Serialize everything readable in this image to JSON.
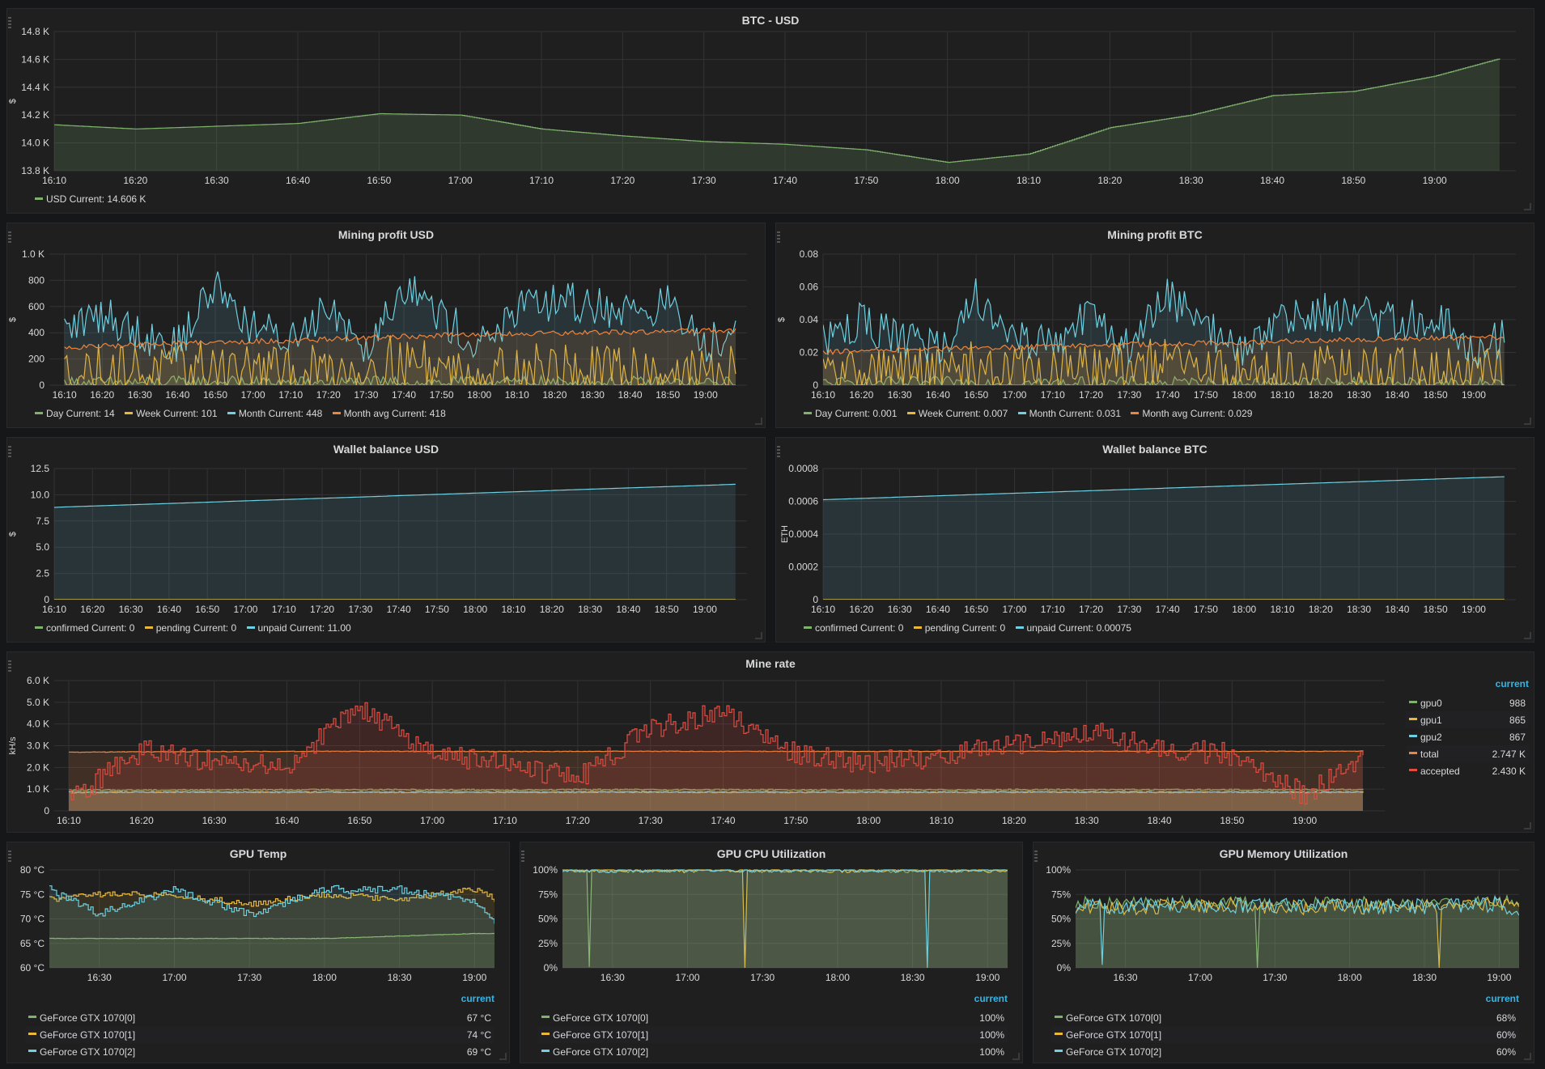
{
  "colors": {
    "green": "#7eb26d",
    "yellow": "#eab839",
    "cyan": "#6ed0e0",
    "orange": "#ef843c",
    "red": "#e24d42"
  },
  "icons": {
    "panel_grip": "drag-grip-icon",
    "panel_resize": "resize-corner-icon"
  },
  "time_ticks": {
    "full": [
      "16:10",
      "16:20",
      "16:30",
      "16:40",
      "16:50",
      "17:00",
      "17:10",
      "17:20",
      "17:30",
      "17:40",
      "17:50",
      "18:00",
      "18:10",
      "18:20",
      "18:30",
      "18:40",
      "18:50",
      "19:00"
    ],
    "half_hour": [
      "16:30",
      "17:00",
      "17:30",
      "18:00",
      "18:30",
      "19:00"
    ]
  },
  "panels": {
    "btc_usd": {
      "title": "BTC - USD",
      "ylabel": "$",
      "yticks": [
        "14.8 K",
        "14.6 K",
        "14.4 K",
        "14.2 K",
        "14.0 K",
        "13.8 K"
      ],
      "legend": [
        {
          "name": "USD",
          "current": "14.606 K",
          "color": "#7eb26d"
        }
      ]
    },
    "mining_profit_usd": {
      "title": "Mining profit USD",
      "ylabel": "$",
      "yticks": [
        "1.0 K",
        "800",
        "600",
        "400",
        "200",
        "0"
      ],
      "legend": [
        {
          "name": "Day",
          "current": "14",
          "color": "#7eb26d"
        },
        {
          "name": "Week",
          "current": "101",
          "color": "#eab839"
        },
        {
          "name": "Month",
          "current": "448",
          "color": "#6ed0e0"
        },
        {
          "name": "Month avg",
          "current": "418",
          "color": "#ef843c"
        }
      ]
    },
    "mining_profit_btc": {
      "title": "Mining profit BTC",
      "ylabel": "$",
      "yticks": [
        "0.08",
        "0.06",
        "0.04",
        "0.02",
        "0"
      ],
      "legend": [
        {
          "name": "Day",
          "current": "0.001",
          "color": "#7eb26d"
        },
        {
          "name": "Week",
          "current": "0.007",
          "color": "#eab839"
        },
        {
          "name": "Month",
          "current": "0.031",
          "color": "#6ed0e0"
        },
        {
          "name": "Month avg",
          "current": "0.029",
          "color": "#ef843c"
        }
      ]
    },
    "wallet_usd": {
      "title": "Wallet balance USD",
      "ylabel": "$",
      "yticks": [
        "12.5",
        "10.0",
        "7.5",
        "5.0",
        "2.5",
        "0"
      ],
      "legend": [
        {
          "name": "confirmed",
          "current": "0",
          "color": "#7eb26d"
        },
        {
          "name": "pending",
          "current": "0",
          "color": "#eab839"
        },
        {
          "name": "unpaid",
          "current": "11.00",
          "color": "#6ed0e0"
        }
      ]
    },
    "wallet_btc": {
      "title": "Wallet balance BTC",
      "ylabel": "ETH",
      "yticks": [
        "0.0008",
        "0.0006",
        "0.0004",
        "0.0002",
        "0"
      ],
      "legend": [
        {
          "name": "confirmed",
          "current": "0",
          "color": "#7eb26d"
        },
        {
          "name": "pending",
          "current": "0",
          "color": "#eab839"
        },
        {
          "name": "unpaid",
          "current": "0.00075",
          "color": "#6ed0e0"
        }
      ]
    },
    "mine_rate": {
      "title": "Mine rate",
      "ylabel": "kH/s",
      "yticks": [
        "6.0 K",
        "5.0 K",
        "4.0 K",
        "3.0 K",
        "2.0 K",
        "1.0 K",
        "0"
      ],
      "legend_header": "current",
      "legend": [
        {
          "name": "gpu0",
          "current": "988",
          "color": "#7eb26d"
        },
        {
          "name": "gpu1",
          "current": "865",
          "color": "#eab839"
        },
        {
          "name": "gpu2",
          "current": "867",
          "color": "#6ed0e0"
        },
        {
          "name": "total",
          "current": "2.747 K",
          "color": "#ef843c"
        },
        {
          "name": "accepted",
          "current": "2.430 K",
          "color": "#e24d42"
        }
      ]
    },
    "gpu_temp": {
      "title": "GPU Temp",
      "yticks": [
        "80 °C",
        "75 °C",
        "70 °C",
        "65 °C",
        "60 °C"
      ],
      "legend_header": "current",
      "legend": [
        {
          "name": "GeForce GTX 1070[0]",
          "current": "67 °C",
          "color": "#7eb26d"
        },
        {
          "name": "GeForce GTX 1070[1]",
          "current": "74 °C",
          "color": "#eab839"
        },
        {
          "name": "GeForce GTX 1070[2]",
          "current": "69 °C",
          "color": "#6ed0e0"
        }
      ]
    },
    "gpu_cpu": {
      "title": "GPU CPU Utilization",
      "yticks": [
        "100%",
        "75%",
        "50%",
        "25%",
        "0%"
      ],
      "legend_header": "current",
      "legend": [
        {
          "name": "GeForce GTX 1070[0]",
          "current": "100%",
          "color": "#7eb26d"
        },
        {
          "name": "GeForce GTX 1070[1]",
          "current": "100%",
          "color": "#eab839"
        },
        {
          "name": "GeForce GTX 1070[2]",
          "current": "100%",
          "color": "#6ed0e0"
        }
      ]
    },
    "gpu_mem": {
      "title": "GPU Memory Utilization",
      "yticks": [
        "100%",
        "75%",
        "50%",
        "25%",
        "0%"
      ],
      "legend_header": "current",
      "legend": [
        {
          "name": "GeForce GTX 1070[0]",
          "current": "68%",
          "color": "#7eb26d"
        },
        {
          "name": "GeForce GTX 1070[1]",
          "current": "60%",
          "color": "#eab839"
        },
        {
          "name": "GeForce GTX 1070[2]",
          "current": "60%",
          "color": "#6ed0e0"
        }
      ]
    }
  },
  "chart_data": [
    {
      "id": "btc_usd",
      "type": "line",
      "title": "BTC - USD",
      "ylabel": "$",
      "ylim": [
        13800,
        14800
      ],
      "x": [
        "16:10",
        "16:20",
        "16:30",
        "16:40",
        "16:50",
        "17:00",
        "17:10",
        "17:20",
        "17:30",
        "17:40",
        "17:50",
        "18:00",
        "18:10",
        "18:20",
        "18:30",
        "18:40",
        "18:50",
        "19:00",
        "19:08"
      ],
      "series": [
        {
          "name": "USD",
          "values": [
            14130,
            14100,
            14120,
            14140,
            14210,
            14200,
            14100,
            14050,
            14010,
            13990,
            13950,
            13860,
            13920,
            14110,
            14200,
            14340,
            14370,
            14480,
            14606
          ]
        }
      ]
    },
    {
      "id": "mining_profit_usd",
      "type": "line",
      "title": "Mining profit USD",
      "ylabel": "$",
      "ylim": [
        0,
        1000
      ],
      "x": [
        "16:10",
        "16:20",
        "16:30",
        "16:40",
        "16:50",
        "17:00",
        "17:10",
        "17:20",
        "17:30",
        "17:40",
        "17:50",
        "18:00",
        "18:10",
        "18:20",
        "18:30",
        "18:40",
        "18:50",
        "19:00",
        "19:08"
      ],
      "series": [
        {
          "name": "Day",
          "values": [
            15,
            18,
            20,
            22,
            25,
            20,
            18,
            20,
            22,
            20,
            18,
            20,
            22,
            20,
            18,
            20,
            18,
            16,
            14
          ]
        },
        {
          "name": "Week",
          "values": [
            90,
            110,
            120,
            100,
            150,
            110,
            80,
            120,
            140,
            190,
            120,
            100,
            110,
            120,
            90,
            130,
            100,
            80,
            101
          ]
        },
        {
          "name": "Month",
          "values": [
            420,
            550,
            400,
            300,
            780,
            430,
            350,
            620,
            300,
            780,
            520,
            300,
            560,
            640,
            610,
            560,
            620,
            300,
            448
          ]
        },
        {
          "name": "Month avg",
          "values": [
            280,
            300,
            310,
            320,
            330,
            335,
            340,
            350,
            360,
            370,
            380,
            385,
            390,
            395,
            400,
            405,
            410,
            415,
            418
          ]
        }
      ]
    },
    {
      "id": "mining_profit_btc",
      "type": "line",
      "title": "Mining profit BTC",
      "ylabel": "$",
      "ylim": [
        0,
        0.08
      ],
      "x": [
        "16:10",
        "16:20",
        "16:30",
        "16:40",
        "16:50",
        "17:00",
        "17:10",
        "17:20",
        "17:30",
        "17:40",
        "17:50",
        "18:00",
        "18:10",
        "18:20",
        "18:30",
        "18:40",
        "18:50",
        "19:00",
        "19:08"
      ],
      "series": [
        {
          "name": "Day",
          "values": [
            0.001,
            0.0012,
            0.0013,
            0.0014,
            0.0015,
            0.0013,
            0.0012,
            0.0013,
            0.0014,
            0.0013,
            0.0012,
            0.0013,
            0.0014,
            0.0013,
            0.0012,
            0.0013,
            0.0012,
            0.0011,
            0.001
          ]
        },
        {
          "name": "Week",
          "values": [
            0.006,
            0.008,
            0.009,
            0.007,
            0.011,
            0.008,
            0.006,
            0.009,
            0.01,
            0.013,
            0.009,
            0.007,
            0.008,
            0.009,
            0.007,
            0.009,
            0.007,
            0.006,
            0.007
          ]
        },
        {
          "name": "Month",
          "values": [
            0.029,
            0.038,
            0.028,
            0.022,
            0.055,
            0.03,
            0.025,
            0.043,
            0.022,
            0.055,
            0.036,
            0.021,
            0.039,
            0.045,
            0.043,
            0.039,
            0.043,
            0.021,
            0.031
          ]
        },
        {
          "name": "Month avg",
          "values": [
            0.02,
            0.021,
            0.022,
            0.022,
            0.023,
            0.023,
            0.024,
            0.024,
            0.025,
            0.025,
            0.026,
            0.026,
            0.027,
            0.027,
            0.028,
            0.028,
            0.029,
            0.029,
            0.029
          ]
        }
      ]
    },
    {
      "id": "wallet_usd",
      "type": "line",
      "title": "Wallet balance USD",
      "ylabel": "$",
      "ylim": [
        0,
        12.5
      ],
      "x": [
        "16:10",
        "19:08"
      ],
      "series": [
        {
          "name": "confirmed",
          "values": [
            0,
            0
          ]
        },
        {
          "name": "pending",
          "values": [
            0,
            0
          ]
        },
        {
          "name": "unpaid",
          "values": [
            8.8,
            11.0
          ]
        }
      ]
    },
    {
      "id": "wallet_btc",
      "type": "line",
      "title": "Wallet balance BTC",
      "ylabel": "ETH",
      "ylim": [
        0,
        0.0008
      ],
      "x": [
        "16:10",
        "19:08"
      ],
      "series": [
        {
          "name": "confirmed",
          "values": [
            0,
            0
          ]
        },
        {
          "name": "pending",
          "values": [
            0,
            0
          ]
        },
        {
          "name": "unpaid",
          "values": [
            0.00061,
            0.00075
          ]
        }
      ]
    },
    {
      "id": "mine_rate",
      "type": "line",
      "title": "Mine rate",
      "ylabel": "kH/s",
      "ylim": [
        0,
        6000
      ],
      "x": [
        "16:10",
        "16:20",
        "16:30",
        "16:40",
        "16:50",
        "17:00",
        "17:10",
        "17:20",
        "17:30",
        "17:40",
        "17:50",
        "18:00",
        "18:10",
        "18:20",
        "18:30",
        "18:40",
        "18:50",
        "19:00",
        "19:08"
      ],
      "series": [
        {
          "name": "gpu0",
          "values": [
            950,
            960,
            970,
            975,
            980,
            975,
            970,
            975,
            980,
            975,
            970,
            965,
            970,
            975,
            980,
            975,
            970,
            975,
            988
          ]
        },
        {
          "name": "gpu1",
          "values": [
            850,
            860,
            865,
            860,
            862,
            858,
            860,
            862,
            865,
            860,
            858,
            860,
            862,
            864,
            865,
            862,
            860,
            862,
            865
          ]
        },
        {
          "name": "gpu2",
          "values": [
            860,
            865,
            868,
            866,
            870,
            866,
            864,
            866,
            870,
            868,
            866,
            864,
            866,
            868,
            870,
            866,
            864,
            866,
            867
          ]
        },
        {
          "name": "total",
          "values": [
            2700,
            2720,
            2730,
            2740,
            2745,
            2740,
            2735,
            2740,
            2745,
            2740,
            2738,
            2740,
            2742,
            2745,
            2748,
            2745,
            2742,
            2745,
            2747
          ]
        },
        {
          "name": "accepted",
          "values": [
            500,
            2800,
            2300,
            2100,
            4800,
            2600,
            2100,
            1500,
            3800,
            4600,
            2600,
            2200,
            2500,
            3100,
            3700,
            2900,
            2600,
            700,
            2430
          ]
        }
      ]
    },
    {
      "id": "gpu_temp",
      "type": "line",
      "title": "GPU Temp",
      "ylim": [
        60,
        80
      ],
      "x": [
        "16:10",
        "16:30",
        "17:00",
        "17:30",
        "18:00",
        "18:30",
        "19:00",
        "19:08"
      ],
      "series": [
        {
          "name": "GeForce GTX 1070[0]",
          "values": [
            66,
            66,
            66,
            66,
            66,
            66.5,
            67,
            67
          ]
        },
        {
          "name": "GeForce GTX 1070[1]",
          "values": [
            74,
            75,
            75,
            73,
            75,
            74,
            76,
            74
          ]
        },
        {
          "name": "GeForce GTX 1070[2]",
          "values": [
            76,
            71,
            76,
            71,
            76,
            76,
            74,
            69
          ]
        }
      ]
    },
    {
      "id": "gpu_cpu",
      "type": "line",
      "title": "GPU CPU Utilization",
      "ylim": [
        0,
        100
      ],
      "x": [
        "16:10",
        "16:30",
        "17:00",
        "17:30",
        "18:00",
        "18:30",
        "19:00",
        "19:08"
      ],
      "series": [
        {
          "name": "GeForce GTX 1070[0]",
          "values": [
            100,
            99,
            100,
            99,
            100,
            99,
            100,
            100
          ]
        },
        {
          "name": "GeForce GTX 1070[1]",
          "values": [
            99,
            100,
            99,
            100,
            99,
            100,
            99,
            100
          ]
        },
        {
          "name": "GeForce GTX 1070[2]",
          "values": [
            100,
            99,
            100,
            99,
            100,
            99,
            100,
            100
          ]
        }
      ]
    },
    {
      "id": "gpu_mem",
      "type": "line",
      "title": "GPU Memory Utilization",
      "ylim": [
        0,
        100
      ],
      "x": [
        "16:10",
        "16:30",
        "17:00",
        "17:30",
        "18:00",
        "18:30",
        "19:00",
        "19:08"
      ],
      "series": [
        {
          "name": "GeForce GTX 1070[0]",
          "values": [
            67,
            66,
            68,
            66,
            67,
            66,
            68,
            68
          ]
        },
        {
          "name": "GeForce GTX 1070[1]",
          "values": [
            63,
            62,
            64,
            62,
            63,
            62,
            64,
            60
          ]
        },
        {
          "name": "GeForce GTX 1070[2]",
          "values": [
            64,
            63,
            65,
            63,
            64,
            63,
            65,
            60
          ]
        }
      ]
    }
  ]
}
